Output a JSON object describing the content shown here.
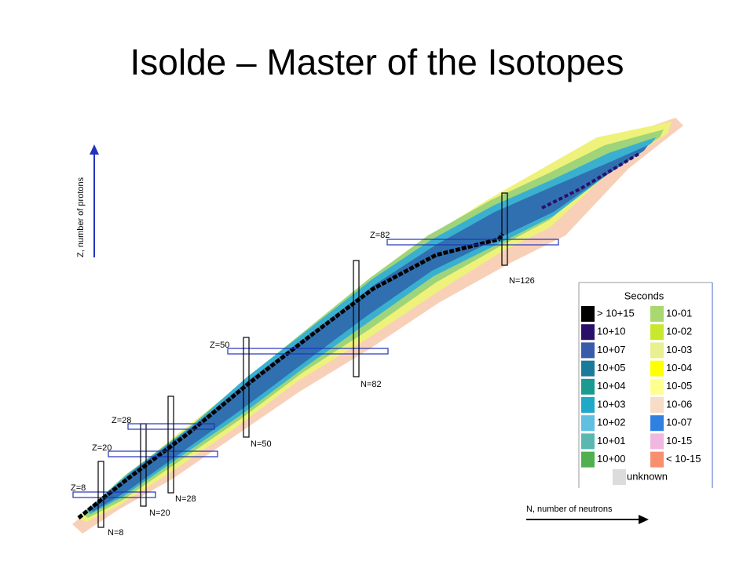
{
  "header": {
    "title": "Isolde – Master of the Isotopes"
  },
  "axes": {
    "y_label": "Z, number of protons",
    "x_label": "N, number of neutrons"
  },
  "magic_numbers": [
    {
      "label": "Z=8"
    },
    {
      "label": "N=8"
    },
    {
      "label": "Z=20"
    },
    {
      "label": "N=20"
    },
    {
      "label": "Z=28"
    },
    {
      "label": "N=28"
    },
    {
      "label": "Z=50"
    },
    {
      "label": "N=50"
    },
    {
      "label": "Z=82"
    },
    {
      "label": "N=82"
    },
    {
      "label": "N=126"
    }
  ],
  "legend": {
    "title": "Seconds",
    "items": [
      {
        "label": "> 10+15",
        "color": "#000000"
      },
      {
        "label": "10+10",
        "color": "#2a1068"
      },
      {
        "label": "10+07",
        "color": "#3a5aaa"
      },
      {
        "label": "10+05",
        "color": "#1a7a9a"
      },
      {
        "label": "10+04",
        "color": "#1a9a90"
      },
      {
        "label": "10+03",
        "color": "#20a8c8"
      },
      {
        "label": "10+02",
        "color": "#60c0e0"
      },
      {
        "label": "10+01",
        "color": "#5ab8b0"
      },
      {
        "label": "10+00",
        "color": "#50b050"
      },
      {
        "label": "10-01",
        "color": "#a8d870"
      },
      {
        "label": "10-02",
        "color": "#c8e830"
      },
      {
        "label": "10-03",
        "color": "#e8f090"
      },
      {
        "label": "10-04",
        "color": "#ffff00"
      },
      {
        "label": "10-05",
        "color": "#ffff90"
      },
      {
        "label": "10-06",
        "color": "#f8dcc8"
      },
      {
        "label": "10-07",
        "color": "#3080e0"
      },
      {
        "label": "10-15",
        "color": "#f0b8e0"
      },
      {
        "label": "< 10-15",
        "color": "#f89070"
      }
    ],
    "unknown": {
      "label": "unknown",
      "color": "#dcdcdc"
    }
  }
}
